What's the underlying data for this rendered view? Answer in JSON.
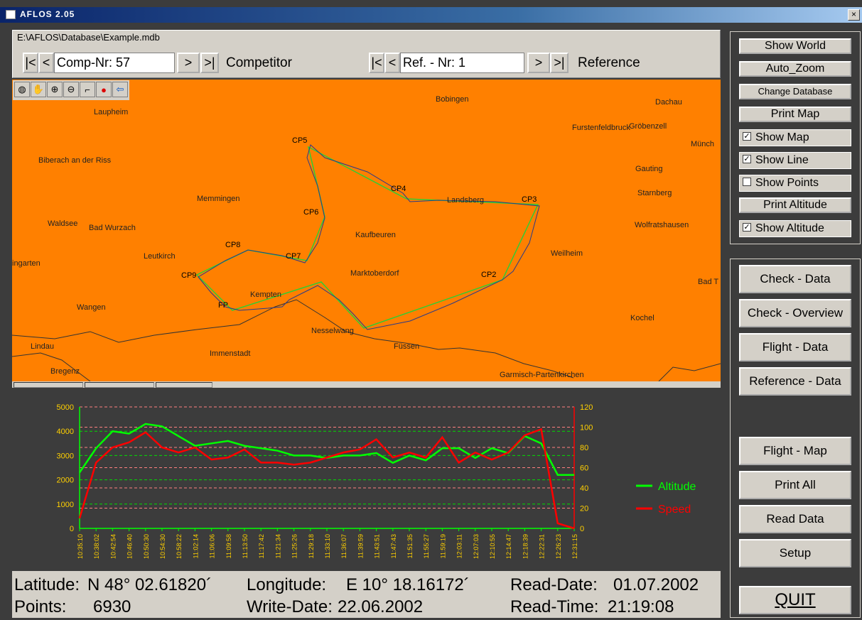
{
  "window": {
    "title": "AFLOS 2.05",
    "close_label": "×"
  },
  "database": {
    "path": "E:\\AFLOS\\Database\\Example.mdb"
  },
  "competitor_nav": {
    "first": "|<",
    "prev": "<",
    "value": "Comp-Nr: 57",
    "next": ">",
    "last": ">|",
    "label": "Competitor"
  },
  "reference_nav": {
    "first": "|<",
    "prev": "<",
    "value": "Ref. - Nr: 1",
    "next": ">",
    "last": ">|",
    "label": "Reference"
  },
  "map": {
    "background": "#ff8000",
    "tools": [
      "globe-icon",
      "hand-icon",
      "zoom-in-icon",
      "zoom-out-icon",
      "measure-icon",
      "info-icon",
      "back-arrow-icon"
    ],
    "cities": [
      {
        "name": "Laupheim"
      },
      {
        "name": "Bobingen"
      },
      {
        "name": "Dachau"
      },
      {
        "name": "Furstenfeldbruck"
      },
      {
        "name": "Gröbenzell"
      },
      {
        "name": "Münch"
      },
      {
        "name": "Biberach an der Riss"
      },
      {
        "name": "Gauting"
      },
      {
        "name": "Memmingen"
      },
      {
        "name": "Landsberg"
      },
      {
        "name": "Starnberg"
      },
      {
        "name": "Waldsee"
      },
      {
        "name": "Bad Wurzach"
      },
      {
        "name": "Kaufbeuren"
      },
      {
        "name": "Wolfratshausen"
      },
      {
        "name": "Leutkirch"
      },
      {
        "name": "Weilheim"
      },
      {
        "name": "ingarten"
      },
      {
        "name": "Marktoberdorf"
      },
      {
        "name": "Bad T"
      },
      {
        "name": "Kempten"
      },
      {
        "name": "Wangen"
      },
      {
        "name": "Kochel"
      },
      {
        "name": "Nesselwang"
      },
      {
        "name": "Lindau"
      },
      {
        "name": "Füssen"
      },
      {
        "name": "Immenstadt"
      },
      {
        "name": "Bregenz"
      },
      {
        "name": "Garmisch-Partenkirchen"
      }
    ],
    "checkpoints": [
      "CP5",
      "CP4",
      "CP3",
      "CP6",
      "CP8",
      "CP7",
      "CP9",
      "CP2",
      "FP"
    ]
  },
  "right_panel": {
    "show_world": "Show World",
    "auto_zoom": "Auto_Zoom",
    "change_database": "Change Database",
    "print_map": "Print Map",
    "show_map": {
      "label": "Show Map",
      "checked": true
    },
    "show_line": {
      "label": "Show Line",
      "checked": true
    },
    "show_points": {
      "label": "Show Points",
      "checked": false
    },
    "print_altitude": "Print Altitude",
    "show_altitude": {
      "label": "Show Altitude",
      "checked": true
    },
    "check_data": "Check - Data",
    "check_overview": "Check - Overview",
    "flight_data": "Flight - Data",
    "reference_data": "Reference - Data",
    "flight_map": "Flight - Map",
    "print_all": "Print All",
    "read_data": "Read Data",
    "setup": "Setup",
    "quit": "QUIT"
  },
  "chart_data": {
    "type": "line",
    "x": [
      "10:35:10",
      "10:38:02",
      "10:42:54",
      "10:46:40",
      "10:50:30",
      "10:54:30",
      "10:58:22",
      "11:02:14",
      "11:06:06",
      "11:09:58",
      "11:13:50",
      "11:17:42",
      "11:21:34",
      "11:25:26",
      "11:29:18",
      "11:33:10",
      "11:36:07",
      "11:39:59",
      "11:43:51",
      "11:47:43",
      "11:51:35",
      "11:55:27",
      "11:59:19",
      "12:03:11",
      "12:07:03",
      "12:10:55",
      "12:14:47",
      "12:18:39",
      "12:22:31",
      "12:26:23",
      "12:31:15"
    ],
    "left_axis": {
      "ticks": [
        "0",
        "1000",
        "2000",
        "3000",
        "4000",
        "5000"
      ],
      "ylim": [
        0,
        5000
      ]
    },
    "right_axis": {
      "ticks": [
        "0",
        "20",
        "40",
        "60",
        "80",
        "100",
        "120"
      ],
      "ylim": [
        0,
        120
      ]
    },
    "legend_position": "right",
    "series": [
      {
        "name": "Altitude",
        "color": "#00ff00",
        "axis": "left",
        "values": [
          2300,
          3300,
          4000,
          3900,
          4300,
          4200,
          3800,
          3400,
          3500,
          3600,
          3400,
          3300,
          3200,
          3000,
          3000,
          2900,
          3000,
          3000,
          3100,
          2700,
          3000,
          2800,
          3300,
          3300,
          2900,
          3300,
          3100,
          3800,
          3500,
          2200,
          2200
        ]
      },
      {
        "name": "Speed",
        "color": "#ff0000",
        "axis": "left_right",
        "values": [
          10,
          65,
          80,
          85,
          95,
          80,
          75,
          80,
          68,
          70,
          78,
          65,
          65,
          63,
          65,
          70,
          75,
          78,
          88,
          70,
          75,
          70,
          90,
          65,
          75,
          68,
          75,
          92,
          98,
          5,
          0
        ]
      }
    ]
  },
  "info": {
    "latitude_label": "Latitude:",
    "latitude_value": "N 48° 02.61820´",
    "longitude_label": "Longitude:",
    "longitude_value": "E 10° 18.16172´",
    "read_date_label": "Read-Date:",
    "read_date_value": "01.07.2002",
    "points_label": "Points:",
    "points_value": "6930",
    "write_date_label": "Write-Date:",
    "write_date_value": "22.06.2002",
    "read_time_label": "Read-Time:",
    "read_time_value": "21:19:08"
  }
}
